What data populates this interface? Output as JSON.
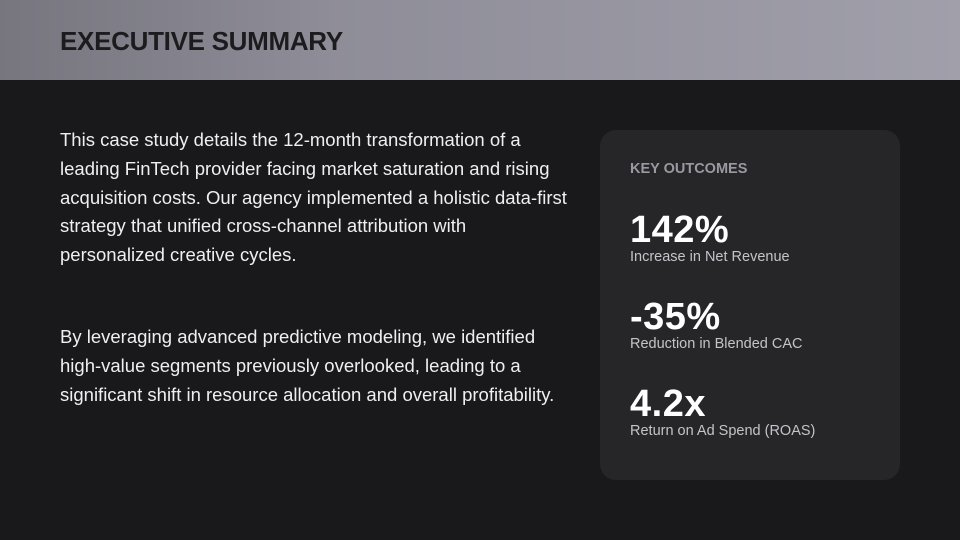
{
  "header": {
    "title": "EXECUTIVE SUMMARY"
  },
  "body": {
    "paragraphs": [
      "This case study details the 12-month transformation of a leading FinTech provider facing market saturation and rising acquisition costs. Our agency implemented a holistic data-first strategy that unified cross-channel attribution with personalized creative cycles.",
      "By leveraging advanced predictive modeling, we identified high-value segments previously overlooked, leading to a significant shift in resource allocation and overall profitability."
    ]
  },
  "outcomes": {
    "title": "KEY OUTCOMES",
    "metrics": [
      {
        "value": "142%",
        "label": "Increase in Net Revenue"
      },
      {
        "value": "-35%",
        "label": "Reduction in Blended CAC"
      },
      {
        "value": "4.2x",
        "label": "Return on Ad Spend (ROAS)"
      }
    ]
  },
  "colors": {
    "background": "#19191b",
    "header_gradient_start": "#77767f",
    "header_gradient_end": "#a09faa",
    "card_background": "#262628",
    "text_primary": "#efeff1",
    "text_muted": "#9a99a2"
  }
}
